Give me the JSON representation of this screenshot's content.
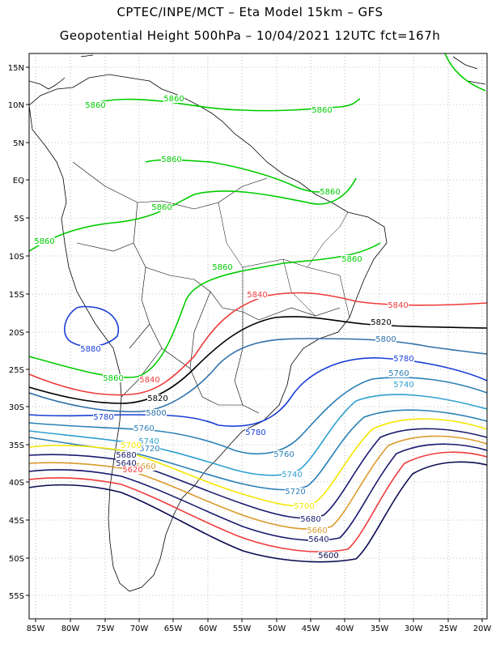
{
  "title_line1": "CPTEC/INPE/MCT –  Eta Model 15km – GFS",
  "title_line2": "Geopotential Height 500hPa – 10/04/2021 12UTC fct=167h",
  "lat_labels": [
    "15N",
    "10N",
    "5N",
    "EQ",
    "5S",
    "10S",
    "15S",
    "20S",
    "25S",
    "30S",
    "35S",
    "40S",
    "45S",
    "50S",
    "55S"
  ],
  "lon_labels": [
    "85W",
    "80W",
    "75W",
    "70W",
    "65W",
    "60W",
    "55W",
    "50W",
    "45W",
    "40W",
    "35W",
    "30W",
    "25W",
    "20W"
  ],
  "contour_colors": {
    "5860": "#00cc00",
    "5880": "#1a3fd6",
    "5840": "#ee3b3b",
    "5820": "#000000",
    "5800": "#2e6fa8",
    "5780": "#1a3fd6",
    "5760": "#2a7fb5",
    "5740": "#2ea0d0",
    "5720": "#2a7fb5",
    "5700": "#f5e600",
    "5680": "#1a1a6e",
    "5660": "#d99a2b",
    "5640": "#1a1a6e",
    "5620": "#ee3b3b",
    "5600": "#0a0a50"
  },
  "contour_labels": [
    {
      "text": "5860",
      "level": "5860"
    },
    {
      "text": "5860",
      "level": "5860"
    },
    {
      "text": "5860",
      "level": "5860"
    },
    {
      "text": "5860",
      "level": "5860"
    },
    {
      "text": "5860",
      "level": "5860"
    },
    {
      "text": "5860",
      "level": "5860"
    },
    {
      "text": "5860",
      "level": "5860"
    },
    {
      "text": "5860",
      "level": "5860"
    },
    {
      "text": "5860",
      "level": "5860"
    },
    {
      "text": "5860",
      "level": "5860"
    },
    {
      "text": "5880",
      "level": "5880"
    },
    {
      "text": "5840",
      "level": "5840"
    },
    {
      "text": "5840",
      "level": "5840"
    },
    {
      "text": "5840",
      "level": "5840"
    },
    {
      "text": "5820",
      "level": "5820"
    },
    {
      "text": "5820",
      "level": "5820"
    },
    {
      "text": "5800",
      "level": "5800"
    },
    {
      "text": "5800",
      "level": "5800"
    },
    {
      "text": "5780",
      "level": "5780"
    },
    {
      "text": "5780",
      "level": "5780"
    },
    {
      "text": "5780",
      "level": "5780"
    },
    {
      "text": "5760",
      "level": "5760"
    },
    {
      "text": "5760",
      "level": "5760"
    },
    {
      "text": "5760",
      "level": "5760"
    },
    {
      "text": "5740",
      "level": "5740"
    },
    {
      "text": "5740",
      "level": "5740"
    },
    {
      "text": "5740",
      "level": "5740"
    },
    {
      "text": "5720",
      "level": "5720"
    },
    {
      "text": "5720",
      "level": "5720"
    },
    {
      "text": "5700",
      "level": "5700"
    },
    {
      "text": "5700",
      "level": "5700"
    },
    {
      "text": "5680",
      "level": "5680"
    },
    {
      "text": "5680",
      "level": "5680"
    },
    {
      "text": "5660",
      "level": "5660"
    },
    {
      "text": "5660",
      "level": "5660"
    },
    {
      "text": "5640",
      "level": "5640"
    },
    {
      "text": "5640",
      "level": "5640"
    },
    {
      "text": "5620",
      "level": "5620"
    },
    {
      "text": "5600",
      "level": "5600"
    }
  ]
}
